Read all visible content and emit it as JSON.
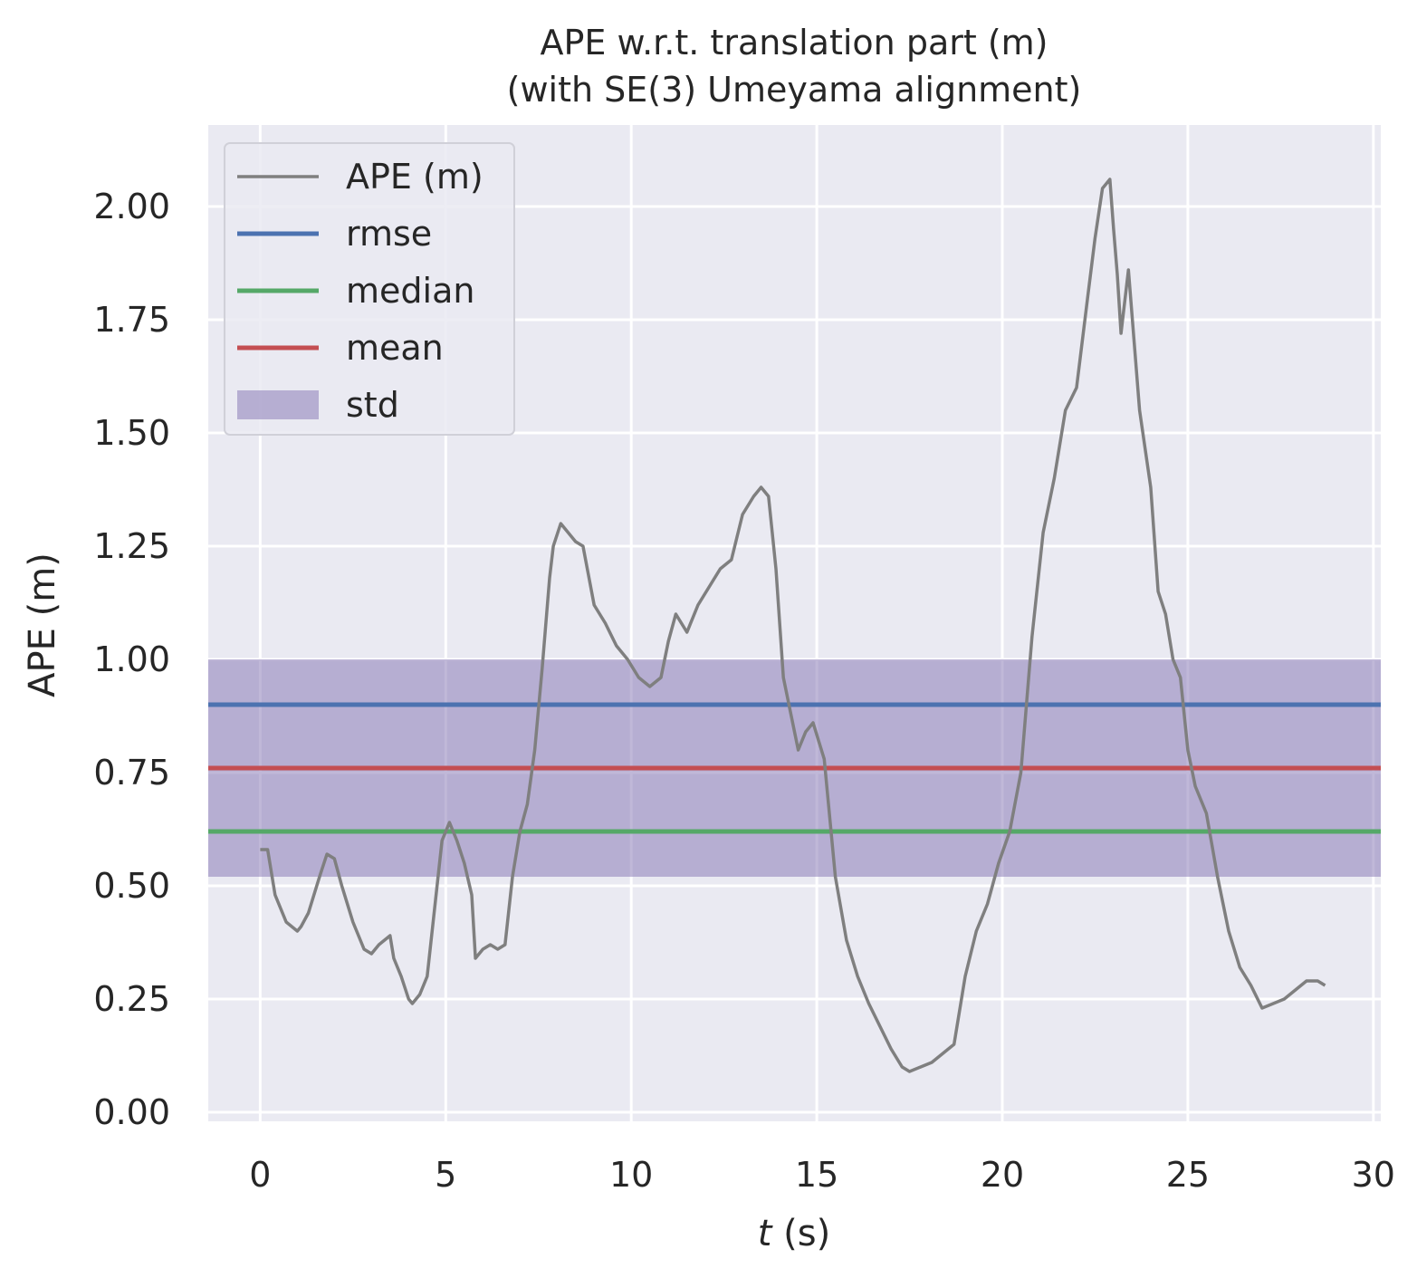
{
  "chart_data": {
    "type": "line",
    "title": "APE w.r.t. translation part (m)",
    "subtitle": "(with SE(3) Umeyama alignment)",
    "xlabel": "t (s)",
    "xlabel_var": "t",
    "xlabel_unit": " (s)",
    "ylabel": "APE (m)",
    "xlim": [
      -1.4,
      30.2
    ],
    "ylim": [
      -0.02,
      2.18
    ],
    "xticks": [
      0,
      5,
      10,
      15,
      20,
      25,
      30
    ],
    "yticks": [
      0.0,
      0.25,
      0.5,
      0.75,
      1.0,
      1.25,
      1.5,
      1.75,
      2.0
    ],
    "xtick_labels": [
      "0",
      "5",
      "10",
      "15",
      "20",
      "25",
      "30"
    ],
    "ytick_labels": [
      "0.00",
      "0.25",
      "0.50",
      "0.75",
      "1.00",
      "1.25",
      "1.50",
      "1.75",
      "2.00"
    ],
    "grid": true,
    "legend_position": "top-left",
    "series": [
      {
        "name": "APE (m)",
        "kind": "line",
        "color": "#7f7f7f",
        "x": [
          0,
          0.2,
          0.4,
          0.7,
          1.0,
          1.1,
          1.3,
          1.6,
          1.8,
          2.0,
          2.2,
          2.5,
          2.8,
          3.0,
          3.2,
          3.5,
          3.6,
          3.8,
          4.0,
          4.1,
          4.3,
          4.5,
          4.7,
          4.9,
          5.1,
          5.3,
          5.5,
          5.7,
          5.8,
          6.0,
          6.2,
          6.4,
          6.6,
          6.8,
          7.0,
          7.2,
          7.4,
          7.6,
          7.8,
          7.9,
          8.1,
          8.3,
          8.5,
          8.7,
          9.0,
          9.3,
          9.6,
          9.9,
          10.2,
          10.5,
          10.8,
          11.0,
          11.2,
          11.5,
          11.8,
          12.1,
          12.4,
          12.7,
          13.0,
          13.3,
          13.5,
          13.7,
          13.9,
          14.1,
          14.3,
          14.5,
          14.7,
          14.9,
          15.2,
          15.5,
          15.8,
          16.1,
          16.4,
          16.7,
          17.0,
          17.3,
          17.5,
          17.8,
          18.1,
          18.4,
          18.7,
          19.0,
          19.3,
          19.6,
          19.9,
          20.2,
          20.5,
          20.8,
          21.1,
          21.4,
          21.7,
          22.0,
          22.3,
          22.5,
          22.7,
          22.9,
          23.0,
          23.1,
          23.2,
          23.4,
          23.7,
          24.0,
          24.2,
          24.4,
          24.6,
          24.8,
          25.0,
          25.2,
          25.5,
          25.8,
          26.1,
          26.4,
          26.7,
          27.0,
          27.3,
          27.6,
          27.9,
          28.2,
          28.5,
          28.7
        ],
        "y": [
          0.58,
          0.58,
          0.48,
          0.42,
          0.4,
          0.41,
          0.44,
          0.52,
          0.57,
          0.56,
          0.5,
          0.42,
          0.36,
          0.35,
          0.37,
          0.39,
          0.34,
          0.3,
          0.25,
          0.24,
          0.26,
          0.3,
          0.45,
          0.6,
          0.64,
          0.6,
          0.55,
          0.48,
          0.34,
          0.36,
          0.37,
          0.36,
          0.37,
          0.52,
          0.62,
          0.68,
          0.8,
          0.98,
          1.18,
          1.25,
          1.3,
          1.28,
          1.26,
          1.25,
          1.12,
          1.08,
          1.03,
          1.0,
          0.96,
          0.94,
          0.96,
          1.04,
          1.1,
          1.06,
          1.12,
          1.16,
          1.2,
          1.22,
          1.32,
          1.36,
          1.38,
          1.36,
          1.2,
          0.96,
          0.88,
          0.8,
          0.84,
          0.86,
          0.78,
          0.52,
          0.38,
          0.3,
          0.24,
          0.19,
          0.14,
          0.1,
          0.09,
          0.1,
          0.11,
          0.13,
          0.15,
          0.3,
          0.4,
          0.46,
          0.55,
          0.62,
          0.75,
          1.05,
          1.28,
          1.4,
          1.55,
          1.6,
          1.8,
          1.93,
          2.04,
          2.06,
          1.95,
          1.85,
          1.72,
          1.86,
          1.55,
          1.38,
          1.15,
          1.1,
          1.0,
          0.96,
          0.8,
          0.72,
          0.66,
          0.52,
          0.4,
          0.32,
          0.28,
          0.23,
          0.24,
          0.25,
          0.27,
          0.29,
          0.29,
          0.28
        ]
      },
      {
        "name": "rmse",
        "kind": "hline",
        "value": 0.9,
        "color": "#4c72b0"
      },
      {
        "name": "median",
        "kind": "hline",
        "value": 0.62,
        "color": "#55a868"
      },
      {
        "name": "mean",
        "kind": "hline",
        "value": 0.76,
        "color": "#c44e52"
      },
      {
        "name": "std",
        "kind": "band",
        "lower": 0.52,
        "upper": 1.0,
        "color": "#8172b2"
      }
    ],
    "legend_entries": [
      "APE (m)",
      "rmse",
      "median",
      "mean",
      "std"
    ]
  },
  "colors": {
    "axes_bg": "#eaeaf2",
    "grid": "#ffffff",
    "text": "#262626"
  }
}
